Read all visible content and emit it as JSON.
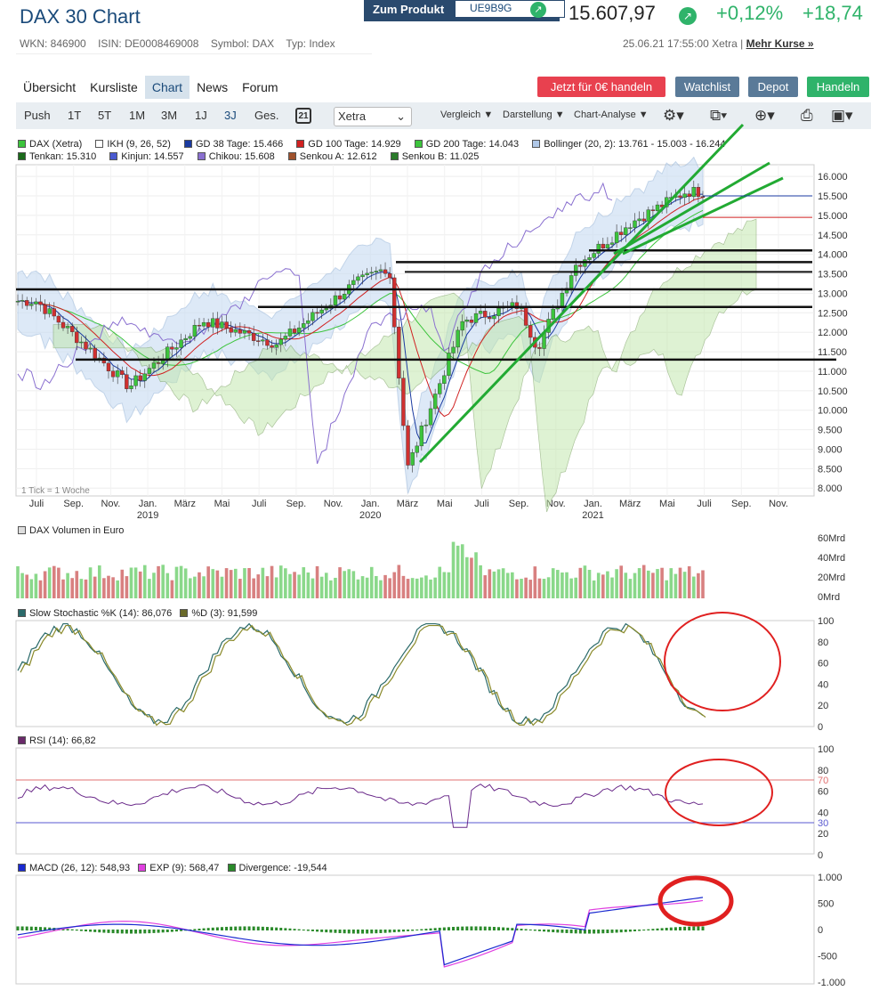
{
  "header": {
    "title": "DAX 30 Chart",
    "zum_produkt": "Zum Produkt",
    "product_code": "UE9B9G",
    "price": "15.607,97",
    "change_pct": "+0,12%",
    "change_abs": "+18,74"
  },
  "meta": {
    "wkn": "WKN: 846900",
    "isin": "ISIN: DE0008469008",
    "symbol": "Symbol: DAX",
    "typ": "Typ: Index",
    "timestamp": "25.06.21 17:55:00 Xetra |",
    "more": "Mehr Kurse »"
  },
  "tabs": [
    "Übersicht",
    "Kursliste",
    "Chart",
    "News",
    "Forum"
  ],
  "buttons": {
    "trade_free": "Jetzt für 0€ handeln",
    "watchlist": "Watchlist",
    "depot": "Depot",
    "handeln": "Handeln"
  },
  "toolbar": {
    "periods": [
      "Push",
      "1T",
      "5T",
      "1M",
      "3M",
      "1J",
      "3J",
      "Ges."
    ],
    "active": "3J",
    "calendar": "21",
    "exchange": "Xetra",
    "vergleich": "Vergleich",
    "darstellung": "Darstellung",
    "analyse": "Chart-Analyse"
  },
  "legend": {
    "row1": [
      {
        "text": "DAX (Xetra)",
        "color": "#3cc43c"
      },
      {
        "text": "IKH (9, 26, 52)",
        "color": "#ffffff"
      },
      {
        "text": "GD 38 Tage: 15.466",
        "color": "#1a3aa0"
      },
      {
        "text": "GD 100 Tage: 14.929",
        "color": "#d02020"
      },
      {
        "text": "GD 200 Tage: 14.043",
        "color": "#3cc43c"
      },
      {
        "text": "Bollinger (20, 2): 13.761 - 15.003 - 16.244",
        "color": "#b0c8e8"
      }
    ],
    "row2": [
      {
        "text": "Tenkan: 15.310",
        "color": "#1a6a1a"
      },
      {
        "text": "Kinjun: 14.557",
        "color": "#4a5ad0"
      },
      {
        "text": "Chikou: 15.608",
        "color": "#8a70d0"
      },
      {
        "text": "Senkou A: 12.612",
        "color": "#a0522d"
      },
      {
        "text": "Senkou B: 11.025",
        "color": "#2a7a2a"
      }
    ]
  },
  "main_chart": {
    "tick_note": "1 Tick = 1 Woche",
    "y_ticks": [
      "16.000",
      "15.500",
      "15.000",
      "14.500",
      "14.000",
      "13.500",
      "13.000",
      "12.500",
      "12.000",
      "11.500",
      "11.000",
      "10.500",
      "10.000",
      "9.500",
      "9.000",
      "8.500",
      "8.000"
    ],
    "x_months": [
      "Juli",
      "Sep.",
      "Nov.",
      "Jan.",
      "März",
      "Mai",
      "Juli",
      "Sep.",
      "Nov.",
      "Jan.",
      "März",
      "Mai",
      "Juli",
      "Sep.",
      "Nov.",
      "Jan.",
      "März",
      "Mai",
      "Juli",
      "Sep.",
      "Nov."
    ],
    "x_years": [
      "2019",
      "2020",
      "2021"
    ]
  },
  "volume": {
    "label": "DAX Volumen in Euro",
    "ticks": [
      "60Mrd",
      "40Mrd",
      "20Mrd",
      "0Mrd"
    ]
  },
  "stoch": {
    "k": "Slow Stochastic %K (14): 86,076",
    "d": "%D (3): 91,599",
    "ticks": [
      "100",
      "80",
      "60",
      "40",
      "20",
      "0"
    ]
  },
  "rsi": {
    "label": "RSI (14): 66,82",
    "ticks": [
      "100",
      "80",
      "60",
      "40",
      "20",
      "0"
    ],
    "upper": "70",
    "lower": "30"
  },
  "macd": {
    "macd": "MACD (26, 12): 548,93",
    "exp": "EXP (9): 568,47",
    "div": "Divergence: -19,544",
    "ticks": [
      "1.000",
      "500",
      "0",
      "-500",
      "-1.000"
    ]
  },
  "chart_data": {
    "type": "candlestick",
    "title": "DAX 30 Chart",
    "approx_weekly_close": [
      {
        "x": "2018-07",
        "y": 12800
      },
      {
        "x": "2018-10",
        "y": 11500
      },
      {
        "x": "2018-12",
        "y": 10600
      },
      {
        "x": "2019-04",
        "y": 12300
      },
      {
        "x": "2019-08",
        "y": 11700
      },
      {
        "x": "2019-12",
        "y": 13200
      },
      {
        "x": "2020-02",
        "y": 13700
      },
      {
        "x": "2020-03",
        "y": 8500
      },
      {
        "x": "2020-06",
        "y": 12300
      },
      {
        "x": "2020-09",
        "y": 12700
      },
      {
        "x": "2020-10",
        "y": 11600
      },
      {
        "x": "2020-12",
        "y": 13700
      },
      {
        "x": "2021-03",
        "y": 14800
      },
      {
        "x": "2021-06",
        "y": 15608
      }
    ]
  }
}
